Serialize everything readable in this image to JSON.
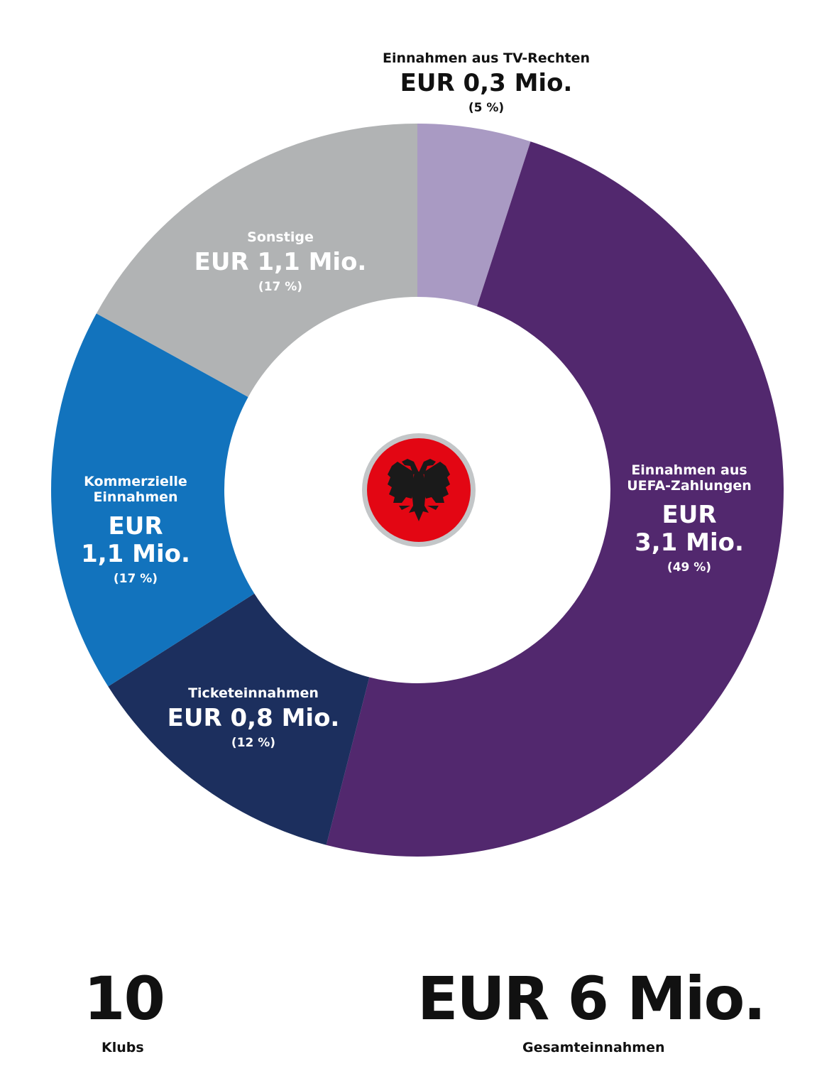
{
  "chart_data": {
    "type": "pie",
    "variant": "donut",
    "segments": [
      {
        "label": "Einnahmen aus TV-Rechten",
        "amount": "EUR 0,3 Mio.",
        "percent_label": "(5 %)",
        "value": 5,
        "color": "#a99ac3"
      },
      {
        "label": "Einnahmen aus UEFA-Zahlungen",
        "amount": "EUR 3,1 Mio.",
        "percent_label": "(49 %)",
        "value": 49,
        "color": "#52286e"
      },
      {
        "label": "Ticketeinnahmen",
        "amount": "EUR 0,8 Mio.",
        "percent_label": "(12 %)",
        "value": 12,
        "color": "#1c2f5e"
      },
      {
        "label": "Kommerzielle Einnahmen",
        "amount": "EUR 1,1 Mio.",
        "percent_label": "(17 %)",
        "value": 17,
        "color": "#1273bd"
      },
      {
        "label": "Sonstige",
        "amount": "EUR 1,1 Mio.",
        "percent_label": "(17 %)",
        "value": 17,
        "color": "#b1b3b4"
      }
    ],
    "center_icon": "albanian-flag-eagle-icon"
  },
  "labels": {
    "tv": {
      "name_lines": [
        "Einnahmen aus TV-Rechten"
      ],
      "amount_lines": [
        "EUR 0,3 Mio."
      ]
    },
    "uefa": {
      "name_lines": [
        "Einnahmen aus",
        "UEFA-Zahlungen"
      ],
      "amount_lines": [
        "EUR",
        "3,1 Mio."
      ]
    },
    "tickets": {
      "name_lines": [
        "Ticketeinnahmen"
      ],
      "amount_lines": [
        "EUR 0,8 Mio."
      ]
    },
    "commercial": {
      "name_lines": [
        "Kommerzielle",
        "Einnahmen"
      ],
      "amount_lines": [
        "EUR",
        "1,1 Mio."
      ]
    },
    "other": {
      "name_lines": [
        "Sonstige"
      ],
      "amount_lines": [
        "EUR 1,1 Mio."
      ]
    }
  },
  "stats": {
    "clubs_value": "10",
    "clubs_caption": "Klubs",
    "revenue_value": "EUR 6 Mio.",
    "revenue_caption": "Gesamteinnahmen"
  },
  "colors": {
    "flag_red": "#e30613",
    "flag_ring": "#c3c6c8",
    "eagle": "#1a1a1a"
  }
}
